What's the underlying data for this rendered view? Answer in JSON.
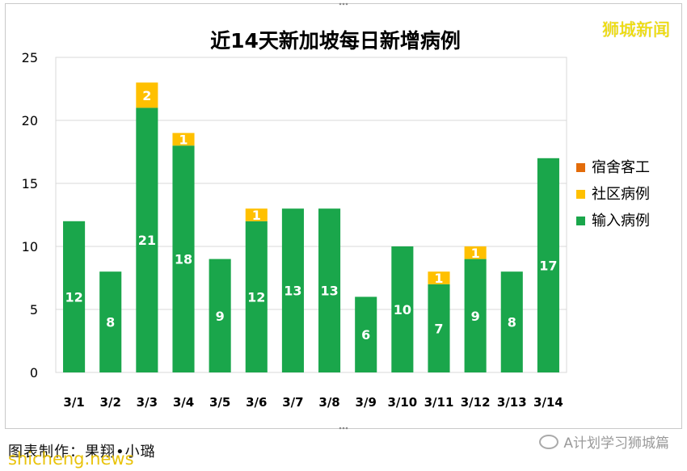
{
  "chart_data": {
    "type": "bar",
    "stacked": true,
    "title": "近14天新加坡每日新增病例",
    "categories": [
      "3/1",
      "3/2",
      "3/3",
      "3/4",
      "3/5",
      "3/6",
      "3/7",
      "3/8",
      "3/9",
      "3/10",
      "3/11",
      "3/12",
      "3/13",
      "3/14"
    ],
    "series": [
      {
        "name": "输入病例",
        "color": "#1aa64b",
        "values": [
          12,
          8,
          21,
          18,
          9,
          12,
          13,
          13,
          6,
          10,
          7,
          9,
          8,
          17
        ]
      },
      {
        "name": "社区病例",
        "color": "#ffc000",
        "values": [
          0,
          0,
          2,
          1,
          0,
          1,
          0,
          0,
          0,
          0,
          1,
          1,
          0,
          0
        ]
      },
      {
        "name": "宿舍客工",
        "color": "#e36c0a",
        "values": [
          0,
          0,
          0,
          0,
          0,
          0,
          0,
          0,
          0,
          0,
          0,
          0,
          0,
          0
        ]
      }
    ],
    "ylim": [
      0,
      25
    ],
    "yticks": [
      0,
      5,
      10,
      15,
      20,
      25
    ],
    "grid": true,
    "legend_position": "right"
  },
  "watermark_top": "狮城新闻",
  "caption": "图表制作：果翔•小璐",
  "site_mark": "shicheng.news",
  "wechat_mark": "A计划学习狮城篇"
}
